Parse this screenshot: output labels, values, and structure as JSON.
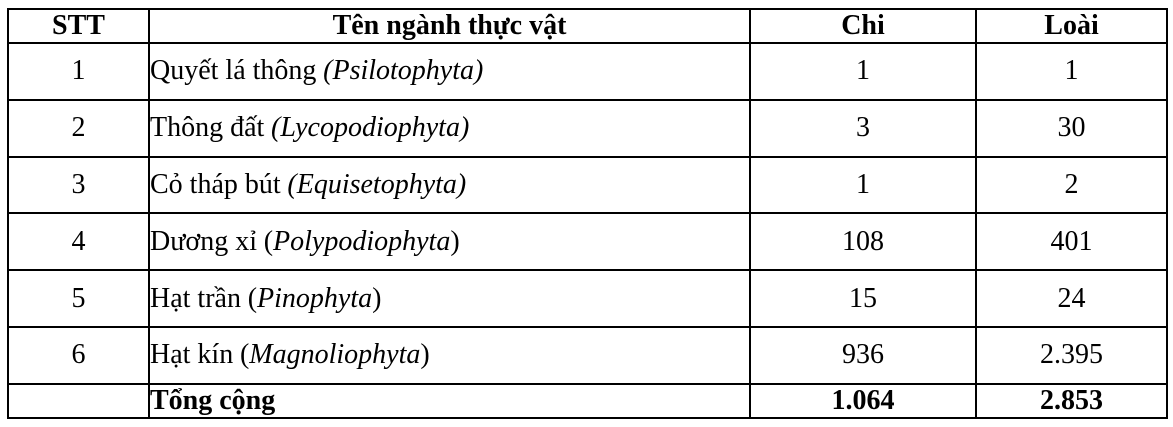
{
  "table": {
    "columns": [
      {
        "label": "STT"
      },
      {
        "label": "Tên ngành thực vật"
      },
      {
        "label": "Chi"
      },
      {
        "label": "Loài"
      }
    ],
    "rows": [
      {
        "stt": "1",
        "name": "Quyết lá thông",
        "paren_open": "(",
        "latin": "Psilotophyta",
        "paren_close": ")",
        "parens_italic": true,
        "chi": "1",
        "loai": "1"
      },
      {
        "stt": "2",
        "name": "Thông đất",
        "paren_open": "(",
        "latin": "Lycopodiophyta",
        "paren_close": ")",
        "parens_italic": true,
        "chi": "3",
        "loai": "30"
      },
      {
        "stt": "3",
        "name": "Cỏ tháp bút",
        "paren_open": "(",
        "latin": "Equisetophyta",
        "paren_close": ")",
        "parens_italic": true,
        "chi": "1",
        "loai": "2"
      },
      {
        "stt": "4",
        "name": "Dương xỉ",
        "paren_open": "(",
        "latin": "Polypodiophyta",
        "paren_close": ")",
        "parens_italic": false,
        "chi": "108",
        "loai": "401"
      },
      {
        "stt": "5",
        "name": "Hạt trần",
        "paren_open": "(",
        "latin": "Pinophyta",
        "paren_close": ")",
        "parens_italic": false,
        "chi": "15",
        "loai": "24"
      },
      {
        "stt": "6",
        "name": "Hạt kín",
        "paren_open": "(",
        "latin": "Magnoliophyta",
        "paren_close": ")",
        "parens_italic": false,
        "chi": "936",
        "loai": "2.395"
      }
    ],
    "total": {
      "label": "Tổng cộng",
      "chi": "1.064",
      "loai": "2.853"
    },
    "colors": {
      "border": "#000000",
      "text": "#000000",
      "background": "#ffffff"
    }
  }
}
